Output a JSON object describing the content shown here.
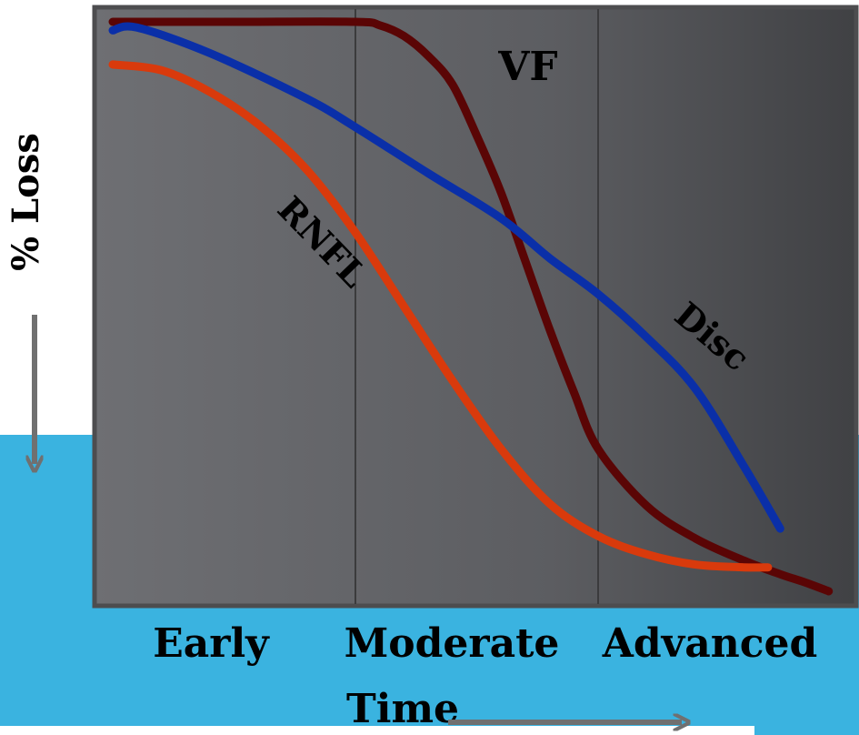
{
  "chart_data": {
    "type": "line",
    "title": "",
    "xlabel": "Time",
    "ylabel": "% Loss",
    "xlim": [
      0,
      3
    ],
    "ylim": [
      0,
      100
    ],
    "grid": false,
    "stages": [
      "Early",
      "Moderate",
      "Advanced"
    ],
    "stage_boundaries": [
      1,
      2
    ],
    "series": [
      {
        "name": "VF",
        "color": "#5a0505",
        "x": [
          0,
          0.5,
          1.0,
          1.1,
          1.2,
          1.3,
          1.4,
          1.5,
          1.6,
          1.7,
          1.8,
          1.9,
          2.0,
          2.2,
          2.4,
          2.6,
          2.75,
          2.85,
          2.95
        ],
        "y": [
          0,
          0,
          0,
          0.6,
          2.5,
          6,
          11,
          20,
          30,
          42,
          54,
          65,
          75,
          85,
          90.7,
          94.6,
          97,
          98.4,
          100
        ]
      },
      {
        "name": "Disc",
        "color": "#0a2fa8",
        "x": [
          0,
          0.1,
          0.4,
          0.8,
          1.0,
          1.3,
          1.6,
          1.8,
          2.0,
          2.2,
          2.4,
          2.6,
          2.75
        ],
        "y": [
          1.5,
          1,
          5.5,
          13.5,
          18.5,
          26.6,
          34.5,
          41.5,
          47.8,
          55.4,
          64.4,
          78,
          89
        ]
      },
      {
        "name": "RNFL",
        "color": "#d93a0c",
        "x": [
          0,
          0.2,
          0.4,
          0.6,
          0.8,
          1.0,
          1.2,
          1.4,
          1.6,
          1.8,
          2.0,
          2.2,
          2.4,
          2.6,
          2.7
        ],
        "y": [
          7.5,
          8.5,
          12.3,
          18,
          26,
          37,
          50,
          63,
          75,
          84.6,
          90.3,
          93.5,
          95.3,
          95.8,
          95.8
        ]
      }
    ]
  }
}
